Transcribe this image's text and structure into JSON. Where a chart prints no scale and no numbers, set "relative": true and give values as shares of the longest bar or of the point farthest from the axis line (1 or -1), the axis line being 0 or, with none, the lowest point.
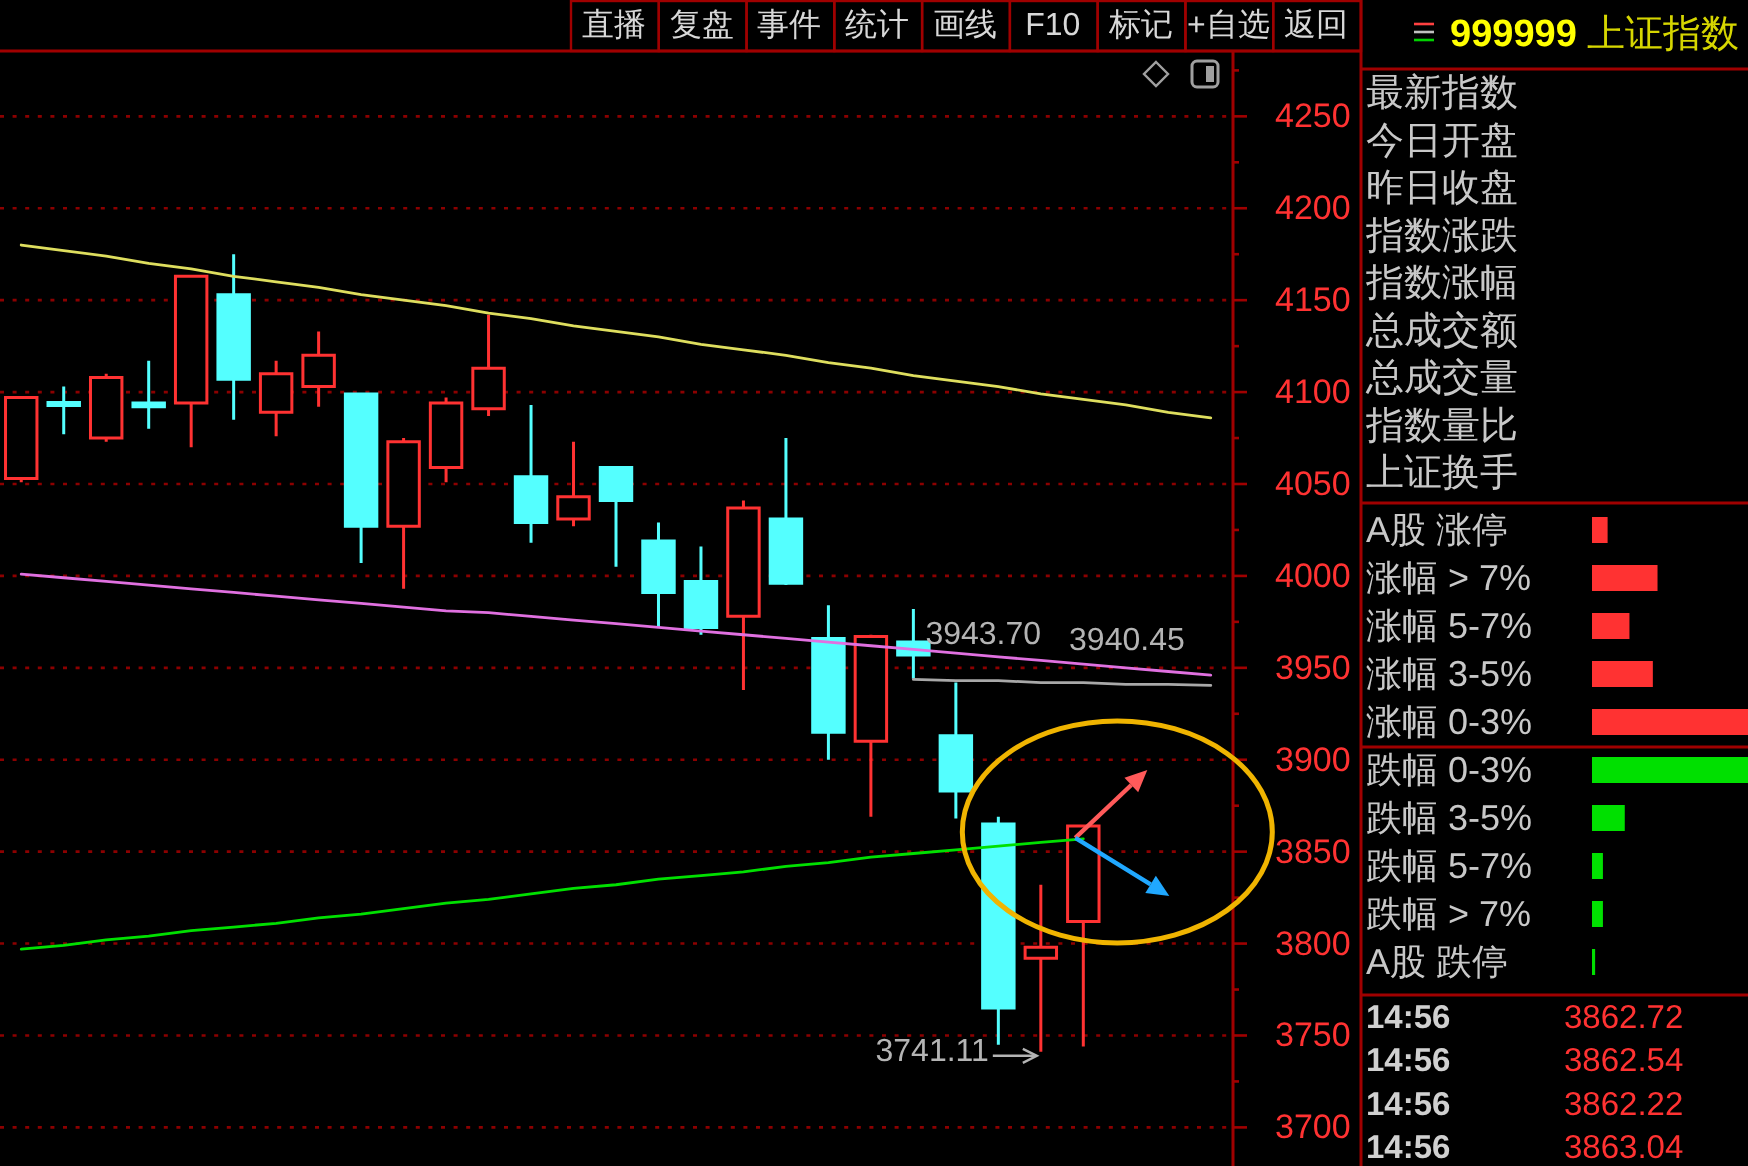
{
  "chart_data": [
    {
      "type": "other",
      "annotations": [
        "直播",
        "复盘",
        "事件",
        "统计",
        "画线",
        "F10",
        "标记",
        "+自选",
        "返回"
      ]
    },
    {
      "type": "candlestick",
      "categories": [
        null,
        null,
        null,
        null,
        null,
        null,
        null,
        null,
        null,
        null,
        null,
        null,
        null,
        null,
        null,
        null,
        null,
        null,
        null,
        null,
        null,
        null,
        null,
        null,
        null,
        null,
        null,
        null,
        null
      ],
      "ohlc": [
        [
          4053,
          4097,
          4051,
          4097
        ],
        [
          4094,
          4103,
          4077,
          4093
        ],
        [
          4075,
          4110,
          4073,
          4108
        ],
        [
          4094,
          4117,
          4080,
          4092
        ],
        [
          4094,
          4163,
          4070,
          4163
        ],
        [
          4153,
          4175,
          4085,
          4107
        ],
        [
          4089,
          4117,
          4076,
          4110
        ],
        [
          4103,
          4133,
          4092,
          4120
        ],
        [
          4099,
          4099,
          4007,
          4027
        ],
        [
          4027,
          4075,
          3993,
          4073
        ],
        [
          4059,
          4097,
          4051,
          4094
        ],
        [
          4091,
          4142,
          4087,
          4113
        ],
        [
          4054,
          4093,
          4018,
          4029
        ],
        [
          4031,
          4073,
          4027,
          4043
        ],
        [
          4059,
          4059,
          4005,
          4041
        ],
        [
          4019,
          4029,
          3972,
          3991
        ],
        [
          3997,
          4016,
          3968,
          3972
        ],
        [
          3978,
          4041,
          3938,
          4037
        ],
        [
          4031,
          4075,
          3995,
          3996
        ],
        [
          3966,
          3984,
          3900,
          3915
        ],
        [
          3910,
          3968,
          3869,
          3967
        ],
        [
          3964,
          3982,
          3944,
          3957
        ],
        [
          3913,
          3942,
          3868,
          3883
        ],
        [
          3865,
          3869,
          3745,
          3765
        ],
        [
          3792,
          3832,
          3741.11,
          3798
        ],
        [
          3812,
          3864,
          3744,
          3864
        ],
        null,
        null,
        null
      ],
      "colors": [
        "#ff3232",
        "#54ffff",
        "#ff3232",
        "#54ffff",
        "#ff3232",
        "#54ffff",
        "#ff3232",
        "#ff3232",
        "#54ffff",
        "#ff3232",
        "#ff3232",
        "#ff3232",
        "#54ffff",
        "#ff3232",
        "#54ffff",
        "#54ffff",
        "#54ffff",
        "#ff3232",
        "#54ffff",
        "#54ffff",
        "#ff3232",
        "#54ffff",
        "#54ffff",
        "#54ffff",
        "#ff3232",
        "#ff3232",
        null,
        null,
        null
      ],
      "series": [
        {
          "type": "line",
          "color": "#dede5e",
          "values": [
            4180,
            4177,
            4174,
            4170,
            4167,
            4163,
            4160,
            4157,
            4153,
            4150,
            4147,
            4143,
            4140,
            4136,
            4133,
            4130,
            4126,
            4123,
            4120,
            4116,
            4113,
            4109,
            4106,
            4103,
            4099,
            4096,
            4093,
            4089,
            4086
          ]
        },
        {
          "type": "line",
          "color": "#e070e0",
          "values": [
            4001,
            3999,
            3997,
            3995,
            3993,
            3991,
            3989,
            3987,
            3985,
            3983,
            3981,
            3980,
            3978,
            3976,
            3974,
            3972,
            3970,
            3968,
            3966,
            3964,
            3962,
            3960,
            3958,
            3956,
            3954,
            3952,
            3950,
            3948,
            3946
          ]
        },
        {
          "type": "line",
          "color": "#00e000",
          "values": [
            3797,
            3799,
            3802,
            3804,
            3807,
            3809,
            3811,
            3814,
            3816,
            3819,
            3822,
            3824,
            3827,
            3830,
            3832,
            3835,
            3837,
            3839,
            3842,
            3844,
            3847,
            3849,
            3851,
            3853,
            3855,
            3857,
            null,
            null,
            null
          ]
        },
        {
          "type": "line",
          "color": "#a8a8a8",
          "values": [
            null,
            null,
            null,
            null,
            null,
            null,
            null,
            null,
            null,
            null,
            null,
            null,
            null,
            null,
            null,
            null,
            null,
            null,
            null,
            null,
            null,
            3943.7,
            3943,
            3943,
            3942,
            3942,
            3941,
            3941,
            3940.45
          ],
          "value_labels": [
            null,
            null,
            null,
            null,
            null,
            null,
            null,
            null,
            null,
            null,
            null,
            null,
            null,
            null,
            null,
            null,
            null,
            null,
            null,
            null,
            null,
            "3943.70",
            null,
            null,
            null,
            null,
            null,
            null,
            "3940.45"
          ]
        }
      ],
      "annotations": [
        "3741.11"
      ],
      "ylim": [
        3679,
        4285
      ],
      "yticks": [
        3700,
        {
          "value": 3725,
          "label": null
        },
        3750,
        {
          "value": 3775,
          "label": null
        },
        3800,
        {
          "value": 3825,
          "label": null
        },
        3850,
        {
          "value": 3875,
          "label": null
        },
        3900,
        {
          "value": 3925,
          "label": null
        },
        3950,
        {
          "value": 3975,
          "label": null
        },
        4000,
        {
          "value": 4025,
          "label": null
        },
        4050,
        {
          "value": 4075,
          "label": null
        },
        4100,
        {
          "value": 4125,
          "label": null
        },
        4150,
        {
          "value": 4175,
          "label": null
        },
        4200,
        {
          "value": 4225,
          "label": null
        },
        4250,
        {
          "value": 4275,
          "label": null
        }
      ],
      "grid": "y",
      "tick_labels": "y"
    },
    {
      "type": "other",
      "title": "999999 上证指数",
      "annotations": [
        "最新指数",
        "今日开盘",
        "昨日收盘",
        "指数涨跌",
        "指数涨幅",
        "总成交额",
        "总成交量",
        "指数量比",
        "上证换手"
      ]
    },
    {
      "type": "bar",
      "orientation": "horizontal",
      "relative": true,
      "categories": [
        "A股 涨停",
        "涨幅 > 7%",
        "涨幅 5-7%",
        "涨幅 3-5%",
        "涨幅 0-3%",
        "跌幅 0-3%",
        "跌幅 3-5%",
        "跌幅 5-7%",
        "跌幅 > 7%",
        "A股 跌停"
      ],
      "values": [
        0.1,
        0.42,
        0.24,
        0.39,
        1,
        1,
        0.21,
        0.07,
        0.07,
        0.02
      ],
      "colors": [
        "#ff3232",
        "#ff3232",
        "#ff3232",
        "#ff3232",
        "#ff3232",
        "#00e000",
        "#00e000",
        "#00e000",
        "#00e000",
        "#00e000"
      ]
    },
    {
      "type": "other",
      "annotations": [
        "14:56",
        "3862.72",
        "14:56",
        "3862.54",
        "14:56",
        "3862.22",
        "14:56",
        "3863.04"
      ]
    }
  ]
}
